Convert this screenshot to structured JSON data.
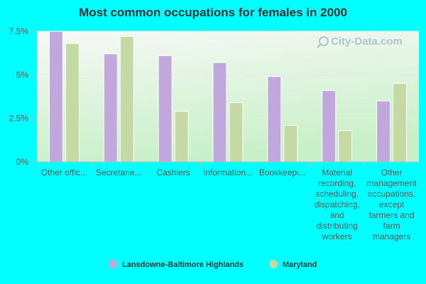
{
  "chart_data": {
    "type": "bar",
    "title": "Most common occupations for females in 2000",
    "xlabel": "",
    "ylabel": "",
    "ylim": [
      0,
      7.5
    ],
    "y_ticks": [
      "0%",
      "2.5%",
      "5%",
      "7.5%"
    ],
    "y_tick_values": [
      0,
      2.5,
      5,
      7.5
    ],
    "categories": [
      "Other offic...",
      "Secretarie...",
      "Cashiers",
      "Information...",
      "Bookkeepi...",
      "Material recording, scheduling, dispatching, and distributing workers",
      "Other management occupations, except farmers and farm managers"
    ],
    "category_lines": [
      [
        "Other offic..."
      ],
      [
        "Secretarie..."
      ],
      [
        "Cashiers"
      ],
      [
        "Information..."
      ],
      [
        "Bookkeepi..."
      ],
      [
        "Material",
        "recording,",
        "scheduling,",
        "dispatching,",
        "and",
        "distributing",
        "workers"
      ],
      [
        "Other",
        "management",
        "occupations,",
        "except",
        "farmers and",
        "farm",
        "managers"
      ]
    ],
    "series": [
      {
        "name": "Lansdowne-Baltimore Highlands",
        "color": "#c0a8dc",
        "values": [
          7.5,
          6.2,
          6.1,
          5.7,
          4.9,
          4.1,
          3.5
        ]
      },
      {
        "name": "Maryland",
        "color": "#c4d9a4",
        "values": [
          6.8,
          7.2,
          2.9,
          3.4,
          2.1,
          1.8,
          4.5
        ]
      }
    ],
    "grid": true,
    "legend_position": "bottom"
  },
  "colors": {
    "background": "#00ffff",
    "plot_gradient_top": "#f6f8f6",
    "plot_gradient_bottom": "#c8f0c8"
  },
  "watermark": {
    "text": "City-Data.com",
    "icon": "magnifier-icon"
  }
}
